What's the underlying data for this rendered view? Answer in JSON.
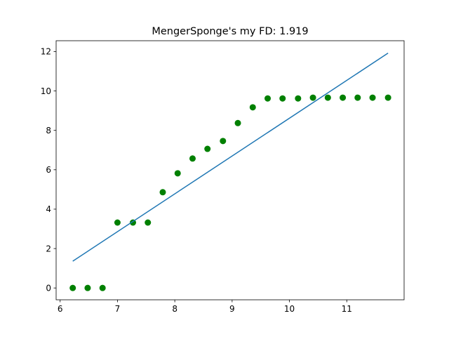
{
  "chart_data": {
    "type": "scatter",
    "title": "MengerSponge's my FD: 1.919",
    "xlabel": "",
    "ylabel": "",
    "xlim": [
      5.93,
      12.0
    ],
    "ylim": [
      -0.6,
      12.55
    ],
    "grid": false,
    "x_ticks": [
      6,
      7,
      8,
      9,
      10,
      11
    ],
    "y_ticks": [
      0,
      2,
      4,
      6,
      8,
      10,
      12
    ],
    "x_tick_labels": [
      "6",
      "7",
      "8",
      "9",
      "10",
      "11"
    ],
    "y_tick_labels": [
      "0",
      "2",
      "4",
      "6",
      "8",
      "10",
      "12"
    ],
    "series": [
      {
        "type": "scatter",
        "color": "#008000",
        "x": [
          6.22,
          6.48,
          6.74,
          7.0,
          7.27,
          7.53,
          7.79,
          8.05,
          8.31,
          8.57,
          8.84,
          9.1,
          9.36,
          9.62,
          9.88,
          10.15,
          10.41,
          10.67,
          10.93,
          11.19,
          11.45,
          11.72
        ],
        "y": [
          0.0,
          0.0,
          0.0,
          3.32,
          3.32,
          3.32,
          4.86,
          5.82,
          6.57,
          7.06,
          7.46,
          8.37,
          9.17,
          9.62,
          9.62,
          9.62,
          9.66,
          9.66,
          9.66,
          9.66,
          9.66,
          9.66
        ]
      },
      {
        "type": "line",
        "color": "#1f77b4",
        "x": [
          6.22,
          11.72
        ],
        "y": [
          1.36,
          11.92
        ]
      }
    ]
  }
}
